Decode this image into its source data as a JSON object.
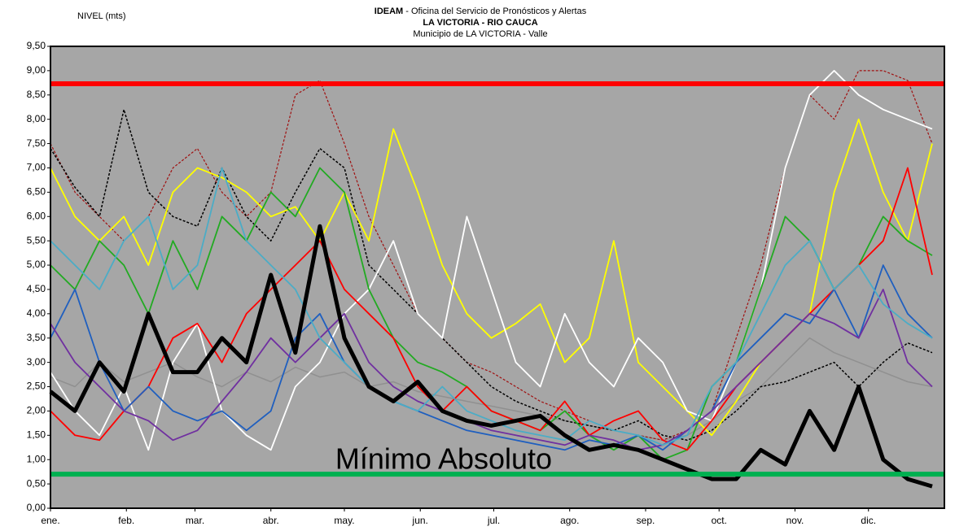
{
  "chart_data": {
    "type": "line",
    "title_bold": "IDEAM",
    "title": "- Oficina del Servicio de Pronósticos y Alertas",
    "subtitle": "LA VICTORIA - RIO CAUCA",
    "subtitle2": "Municipio de LA VICTORIA - Valle",
    "y_label": "NIVEL (mts)",
    "annotation": "Mínimo Absoluto",
    "background": "#a6a6a6",
    "xlim": [
      1,
      366
    ],
    "xticks": [
      {
        "value": 1,
        "label": "ene."
      },
      {
        "value": 32,
        "label": "feb."
      },
      {
        "value": 60,
        "label": "mar."
      },
      {
        "value": 91,
        "label": "abr."
      },
      {
        "value": 121,
        "label": "may."
      },
      {
        "value": 152,
        "label": "jun."
      },
      {
        "value": 182,
        "label": "jul."
      },
      {
        "value": 213,
        "label": "ago."
      },
      {
        "value": 244,
        "label": "sep."
      },
      {
        "value": 274,
        "label": "oct."
      },
      {
        "value": 305,
        "label": "nov."
      },
      {
        "value": 335,
        "label": "dic."
      }
    ],
    "ylim": [
      0,
      9.5
    ],
    "yticks": [
      {
        "value": 0,
        "label": "0,00"
      },
      {
        "value": 0.5,
        "label": "0,50"
      },
      {
        "value": 1,
        "label": "1,00"
      },
      {
        "value": 1.5,
        "label": "1,50"
      },
      {
        "value": 2,
        "label": "2,00"
      },
      {
        "value": 2.5,
        "label": "2,50"
      },
      {
        "value": 3,
        "label": "3,00"
      },
      {
        "value": 3.5,
        "label": "3,50"
      },
      {
        "value": 4,
        "label": "4,00"
      },
      {
        "value": 4.5,
        "label": "4,50"
      },
      {
        "value": 5,
        "label": "5,00"
      },
      {
        "value": 5.5,
        "label": "5,50"
      },
      {
        "value": 6,
        "label": "6,00"
      },
      {
        "value": 6.5,
        "label": "6,50"
      },
      {
        "value": 7,
        "label": "7,00"
      },
      {
        "value": 7.5,
        "label": "7,50"
      },
      {
        "value": 8,
        "label": "8,00"
      },
      {
        "value": 8.5,
        "label": "8,50"
      },
      {
        "value": 9,
        "label": "9,00"
      },
      {
        "value": 9.5,
        "label": "9,50"
      }
    ],
    "hlines": [
      {
        "value": 8.73,
        "color": "#ff0000"
      },
      {
        "value": 0.7,
        "color": "#00b050"
      }
    ],
    "x": [
      1,
      11,
      21,
      31,
      41,
      51,
      61,
      71,
      81,
      91,
      101,
      111,
      121,
      131,
      141,
      151,
      161,
      171,
      181,
      191,
      201,
      211,
      221,
      231,
      241,
      251,
      261,
      271,
      281,
      291,
      301,
      311,
      321,
      331,
      341,
      351,
      361
    ],
    "series": [
      {
        "color": "#909090",
        "width": 1.5,
        "dash": false,
        "values": [
          2.7,
          2.5,
          3.0,
          2.6,
          2.8,
          3.0,
          2.7,
          2.5,
          2.8,
          2.6,
          2.9,
          2.7,
          2.8,
          2.5,
          2.6,
          2.4,
          2.3,
          2.2,
          2.1,
          2.0,
          1.9,
          1.8,
          1.7,
          1.6,
          1.5,
          1.4,
          1.5,
          1.8,
          2.2,
          2.5,
          3.0,
          3.5,
          3.2,
          3.0,
          2.8,
          2.6,
          2.5
        ]
      },
      {
        "color": "#a01010",
        "width": 1.2,
        "dash": true,
        "values": [
          7.5,
          6.5,
          6.0,
          5.5,
          6.0,
          7.0,
          7.4,
          6.5,
          6.0,
          6.5,
          8.5,
          8.8,
          7.5,
          6.0,
          5.0,
          4.0,
          3.5,
          3.0,
          2.8,
          2.5,
          2.2,
          2.0,
          1.8,
          1.6,
          1.5,
          1.4,
          1.6,
          2.0,
          3.5,
          5.0,
          7.0,
          8.5,
          8.0,
          9.0,
          9.0,
          8.8,
          7.5
        ]
      },
      {
        "color": "#000000",
        "width": 1.5,
        "dash": true,
        "values": [
          7.4,
          6.6,
          6.0,
          8.2,
          6.5,
          6.0,
          5.8,
          7.0,
          6.0,
          5.5,
          6.5,
          7.4,
          7.0,
          5.0,
          4.5,
          4.0,
          3.5,
          3.0,
          2.5,
          2.2,
          2.0,
          1.8,
          1.7,
          1.6,
          1.8,
          1.5,
          1.4,
          1.6,
          2.0,
          2.5,
          2.6,
          2.8,
          3.0,
          2.5,
          3.0,
          3.4,
          3.2
        ]
      },
      {
        "color": "#ffff00",
        "width": 1.8,
        "dash": false,
        "values": [
          7.0,
          6.0,
          5.5,
          6.0,
          5.0,
          6.5,
          7.0,
          6.8,
          6.5,
          6.0,
          6.2,
          5.5,
          6.5,
          5.5,
          7.8,
          6.5,
          5.0,
          4.0,
          3.5,
          3.8,
          4.2,
          3.0,
          3.5,
          5.5,
          3.0,
          2.5,
          2.0,
          1.5,
          2.2,
          3.0,
          3.5,
          4.0,
          6.5,
          8.0,
          6.5,
          5.5,
          7.5
        ]
      },
      {
        "color": "#ffffff",
        "width": 1.8,
        "dash": false,
        "values": [
          2.8,
          2.0,
          1.5,
          2.5,
          1.2,
          3.0,
          3.8,
          2.0,
          1.5,
          1.2,
          2.5,
          3.0,
          4.0,
          4.5,
          5.5,
          4.0,
          3.5,
          6.0,
          4.5,
          3.0,
          2.5,
          4.0,
          3.0,
          2.5,
          3.5,
          3.0,
          2.0,
          1.8,
          3.0,
          4.5,
          7.0,
          8.5,
          9.0,
          8.5,
          8.2,
          8.0,
          7.8
        ]
      },
      {
        "color": "#22aa22",
        "width": 1.8,
        "dash": false,
        "values": [
          5.0,
          4.5,
          5.5,
          5.0,
          4.0,
          5.5,
          4.5,
          6.0,
          5.5,
          6.5,
          6.0,
          7.0,
          6.5,
          4.5,
          3.5,
          3.0,
          2.8,
          2.5,
          2.0,
          1.8,
          1.6,
          2.0,
          1.5,
          1.2,
          1.5,
          1.0,
          1.2,
          2.5,
          3.0,
          4.5,
          6.0,
          5.5,
          4.5,
          5.0,
          6.0,
          5.5,
          5.2
        ]
      },
      {
        "color": "#ff0000",
        "width": 1.8,
        "dash": false,
        "values": [
          2.0,
          1.5,
          1.4,
          2.0,
          2.5,
          3.5,
          3.8,
          3.0,
          4.0,
          4.5,
          5.0,
          5.5,
          4.5,
          4.0,
          3.5,
          2.5,
          2.0,
          2.5,
          2.0,
          1.8,
          1.6,
          2.2,
          1.5,
          1.8,
          2.0,
          1.4,
          1.2,
          1.8,
          2.5,
          3.0,
          3.5,
          4.0,
          4.5,
          5.0,
          5.5,
          7.0,
          4.8
        ]
      },
      {
        "color": "#1f5fbf",
        "width": 1.8,
        "dash": false,
        "values": [
          3.5,
          4.5,
          3.0,
          2.0,
          2.5,
          2.0,
          1.8,
          2.0,
          1.6,
          2.0,
          3.5,
          4.0,
          3.0,
          2.5,
          2.2,
          2.0,
          1.8,
          1.6,
          1.5,
          1.4,
          1.3,
          1.2,
          1.4,
          1.3,
          1.5,
          1.2,
          1.6,
          2.0,
          3.0,
          3.5,
          4.0,
          3.8,
          4.5,
          3.5,
          5.0,
          4.0,
          3.5
        ]
      },
      {
        "color": "#7030a0",
        "width": 1.8,
        "dash": false,
        "values": [
          3.8,
          3.0,
          2.5,
          2.0,
          1.8,
          1.4,
          1.6,
          2.2,
          2.8,
          3.5,
          3.0,
          3.5,
          4.0,
          3.0,
          2.5,
          2.2,
          2.0,
          1.8,
          1.6,
          1.5,
          1.4,
          1.3,
          1.5,
          1.4,
          1.2,
          1.3,
          1.6,
          2.0,
          2.5,
          3.0,
          3.5,
          4.0,
          3.8,
          3.5,
          4.5,
          3.0,
          2.5
        ]
      },
      {
        "color": "#4bacc6",
        "width": 1.8,
        "dash": false,
        "values": [
          5.5,
          5.0,
          4.5,
          5.5,
          6.0,
          4.5,
          5.0,
          7.0,
          5.5,
          5.0,
          4.5,
          3.5,
          3.0,
          2.5,
          2.2,
          2.0,
          2.5,
          2.0,
          1.8,
          1.6,
          1.5,
          1.4,
          1.8,
          1.6,
          1.5,
          1.3,
          1.5,
          2.5,
          3.0,
          4.0,
          5.0,
          5.5,
          4.5,
          5.0,
          4.2,
          3.8,
          3.5
        ]
      },
      {
        "color": "#000000",
        "width": 5,
        "dash": false,
        "values": [
          2.4,
          2.0,
          3.0,
          2.4,
          4.0,
          2.8,
          2.8,
          3.5,
          3.0,
          4.8,
          3.2,
          5.8,
          3.5,
          2.5,
          2.2,
          2.6,
          2.0,
          1.8,
          1.7,
          1.8,
          1.9,
          1.5,
          1.2,
          1.3,
          1.2,
          1.0,
          0.8,
          0.6,
          0.6,
          1.2,
          0.9,
          2.0,
          1.2,
          2.5,
          1.0,
          0.6,
          0.45
        ]
      }
    ]
  }
}
